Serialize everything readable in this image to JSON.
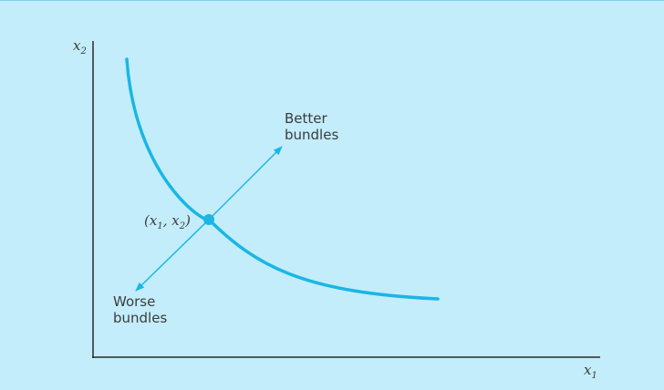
{
  "colors": {
    "background": "#c3edfb",
    "curve": "#1ab6e4",
    "axis": "#2a2a2a",
    "text": "#3c3c3c"
  },
  "axes": {
    "y_label": "x",
    "y_label_sub": "2",
    "x_label": "x",
    "x_label_sub": "1"
  },
  "point": {
    "label_open": "(x",
    "label_sub1": "1",
    "label_mid": ", x",
    "label_sub2": "2",
    "label_close": ")"
  },
  "better": {
    "line1": "Better",
    "line2": "bundles"
  },
  "worse": {
    "line1": "Worse",
    "line2": "bundles"
  }
}
